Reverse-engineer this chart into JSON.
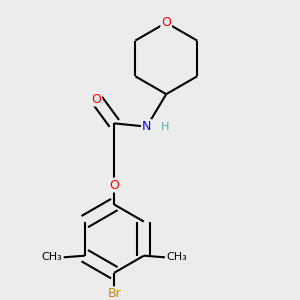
{
  "background_color": "#ececec",
  "bond_color": "#000000",
  "bond_width": 1.5,
  "atom_colors": {
    "O": "#ff0000",
    "N": "#0000ff",
    "Br": "#cc8800",
    "H": "#50b0a0",
    "C": "#000000"
  },
  "font_size": 9,
  "fig_size": [
    3.0,
    3.0
  ],
  "dpi": 100
}
